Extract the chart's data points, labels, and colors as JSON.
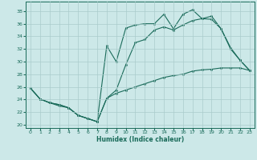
{
  "xlabel": "Humidex (Indice chaleur)",
  "bg_color": "#cce8e8",
  "grid_color": "#aacccc",
  "line_color": "#1a6b5a",
  "xlim": [
    -0.5,
    23.5
  ],
  "ylim": [
    19.5,
    39.5
  ],
  "xticks": [
    0,
    1,
    2,
    3,
    4,
    5,
    6,
    7,
    8,
    9,
    10,
    11,
    12,
    13,
    14,
    15,
    16,
    17,
    18,
    19,
    20,
    21,
    22,
    23
  ],
  "yticks": [
    20,
    22,
    24,
    26,
    28,
    30,
    32,
    34,
    36,
    38
  ],
  "series1_x": [
    0,
    1,
    2,
    3,
    4,
    5,
    6,
    7,
    8,
    9,
    10,
    11,
    12,
    13,
    14,
    15,
    16,
    17,
    18,
    19,
    20,
    21,
    22,
    23
  ],
  "series1_y": [
    25.8,
    24.1,
    23.5,
    23.0,
    22.7,
    21.5,
    21.0,
    20.5,
    32.5,
    30.0,
    35.3,
    35.8,
    36.0,
    36.0,
    37.5,
    35.2,
    37.5,
    38.2,
    36.8,
    36.7,
    35.2,
    32.2,
    30.2,
    28.6
  ],
  "series2_x": [
    0,
    1,
    2,
    3,
    4,
    5,
    6,
    7,
    8,
    9,
    10,
    11,
    12,
    13,
    14,
    15,
    16,
    17,
    18,
    19,
    20,
    21,
    22,
    23
  ],
  "series2_y": [
    25.8,
    24.1,
    23.5,
    23.2,
    22.7,
    21.5,
    21.0,
    20.5,
    24.2,
    25.5,
    29.5,
    33.0,
    33.5,
    35.0,
    35.5,
    35.0,
    35.8,
    36.5,
    36.8,
    37.2,
    35.2,
    32.0,
    30.2,
    28.6
  ],
  "series3_x": [
    0,
    1,
    2,
    3,
    4,
    5,
    6,
    7,
    8,
    9,
    10,
    11,
    12,
    13,
    14,
    15,
    16,
    17,
    18,
    19,
    20,
    21,
    22,
    23
  ],
  "series3_y": [
    25.8,
    24.1,
    23.5,
    23.2,
    22.7,
    21.5,
    21.0,
    20.5,
    24.2,
    25.0,
    25.5,
    26.0,
    26.5,
    27.0,
    27.5,
    27.8,
    28.0,
    28.5,
    28.7,
    28.8,
    29.0,
    29.0,
    29.0,
    28.6
  ]
}
